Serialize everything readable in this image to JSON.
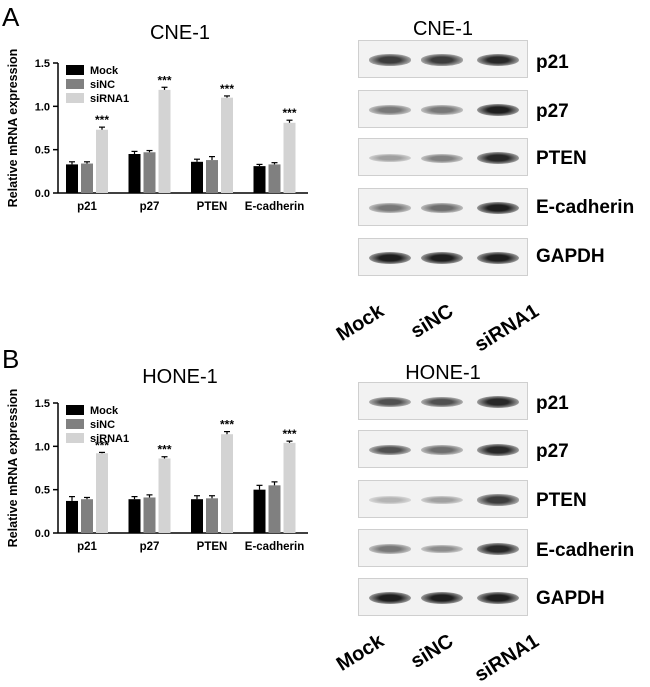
{
  "panel_a": {
    "letter": "A",
    "chart_title": "CNE-1",
    "blot_title": "CNE-1",
    "blot_labels": [
      "p21",
      "p27",
      "PTEN",
      "E-cadherin",
      "GAPDH"
    ],
    "lane_labels": [
      "Mock",
      "siNC",
      "siRNA1"
    ]
  },
  "panel_b": {
    "letter": "B",
    "chart_title": "HONE-1",
    "blot_title": "HONE-1",
    "blot_labels": [
      "p21",
      "p27",
      "PTEN",
      "E-cadherin",
      "GAPDH"
    ],
    "lane_labels": [
      "Mock",
      "siNC",
      "siRNA1"
    ]
  },
  "colors": {
    "mock": "#000000",
    "sinc": "#808080",
    "sirna1": "#d3d3d3"
  },
  "chart_data": [
    {
      "type": "bar",
      "title": "CNE-1",
      "ylabel": "Relative mRNA expression",
      "xlabel": "",
      "categories": [
        "p21",
        "p27",
        "PTEN",
        "E-cadherin"
      ],
      "ylim": [
        0,
        1.5
      ],
      "yticks": [
        "0.0",
        "0.5",
        "1.0",
        "1.5"
      ],
      "legend_position": "top-left",
      "series": [
        {
          "name": "Mock",
          "values": [
            0.33,
            0.45,
            0.36,
            0.31
          ],
          "errors": [
            0.03,
            0.03,
            0.03,
            0.02
          ]
        },
        {
          "name": "siNC",
          "values": [
            0.34,
            0.47,
            0.38,
            0.33
          ],
          "errors": [
            0.02,
            0.02,
            0.04,
            0.02
          ]
        },
        {
          "name": "siRNA1",
          "values": [
            0.73,
            1.19,
            1.1,
            0.81
          ],
          "errors": [
            0.03,
            0.03,
            0.02,
            0.03
          ]
        }
      ],
      "annotations": [
        "***",
        "***",
        "***",
        "***"
      ]
    },
    {
      "type": "bar",
      "title": "HONE-1",
      "ylabel": "Relative mRNA expression",
      "xlabel": "",
      "categories": [
        "p21",
        "p27",
        "PTEN",
        "E-cadherin"
      ],
      "ylim": [
        0,
        1.5
      ],
      "yticks": [
        "0.0",
        "0.5",
        "1.0",
        "1.5"
      ],
      "legend_position": "top-left",
      "series": [
        {
          "name": "Mock",
          "values": [
            0.37,
            0.39,
            0.39,
            0.5
          ],
          "errors": [
            0.05,
            0.03,
            0.04,
            0.05
          ]
        },
        {
          "name": "siNC",
          "values": [
            0.39,
            0.41,
            0.4,
            0.55
          ],
          "errors": [
            0.02,
            0.03,
            0.03,
            0.04
          ]
        },
        {
          "name": "siRNA1",
          "values": [
            0.92,
            0.86,
            1.14,
            1.04
          ],
          "errors": [
            0.01,
            0.02,
            0.03,
            0.02
          ]
        }
      ],
      "annotations": [
        "***",
        "***",
        "***",
        "***"
      ]
    }
  ],
  "blot_data": [
    {
      "intensity": [
        [
          0.85,
          0.85,
          0.95
        ],
        [
          0.55,
          0.55,
          1.0
        ],
        [
          0.35,
          0.5,
          0.95
        ],
        [
          0.55,
          0.6,
          1.0
        ],
        [
          1.0,
          1.0,
          1.0
        ]
      ]
    },
    {
      "intensity": [
        [
          0.75,
          0.75,
          0.95
        ],
        [
          0.75,
          0.6,
          0.95
        ],
        [
          0.25,
          0.35,
          0.85
        ],
        [
          0.55,
          0.45,
          0.95
        ],
        [
          1.0,
          1.0,
          1.0
        ]
      ]
    }
  ]
}
